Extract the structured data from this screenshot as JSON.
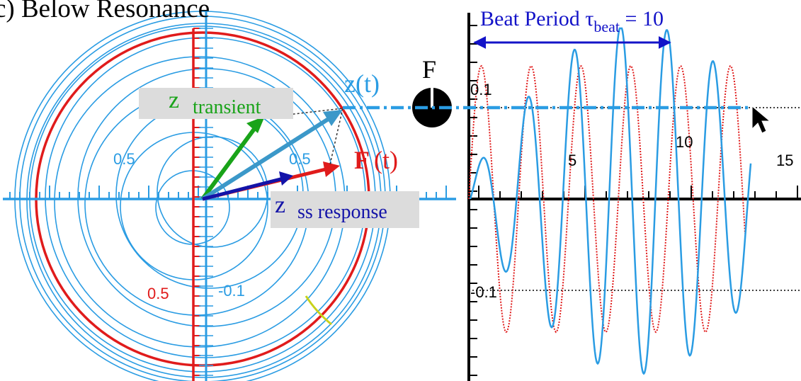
{
  "title": "c) Below Resonance",
  "phasor": {
    "labels": {
      "z_transient": {
        "main": "z",
        "sub": "transient"
      },
      "z_ss": {
        "main": "z",
        "sub": "ss response"
      },
      "z_t": "z(t)",
      "F_t": {
        "main": "F",
        "arg": "(t)"
      }
    },
    "tick_labels": [
      "0.5",
      "0.5",
      "0.5",
      "-0.1"
    ]
  },
  "beat": {
    "label_prefix": "Beat Period ",
    "tau": "τ",
    "sub": "beat",
    "suffix": " = 10"
  },
  "plot": {
    "F_label": "F",
    "x_ticks": [
      "5",
      "10",
      "15"
    ],
    "y_ticks": [
      "0.1",
      "-0.1"
    ]
  },
  "colors": {
    "ring": "#2a9ce3",
    "red": "#e01b1b",
    "green": "#19a319",
    "navy": "#1313a8",
    "steel": "#3b98c9",
    "label_bg": "#dcdcdc"
  }
}
